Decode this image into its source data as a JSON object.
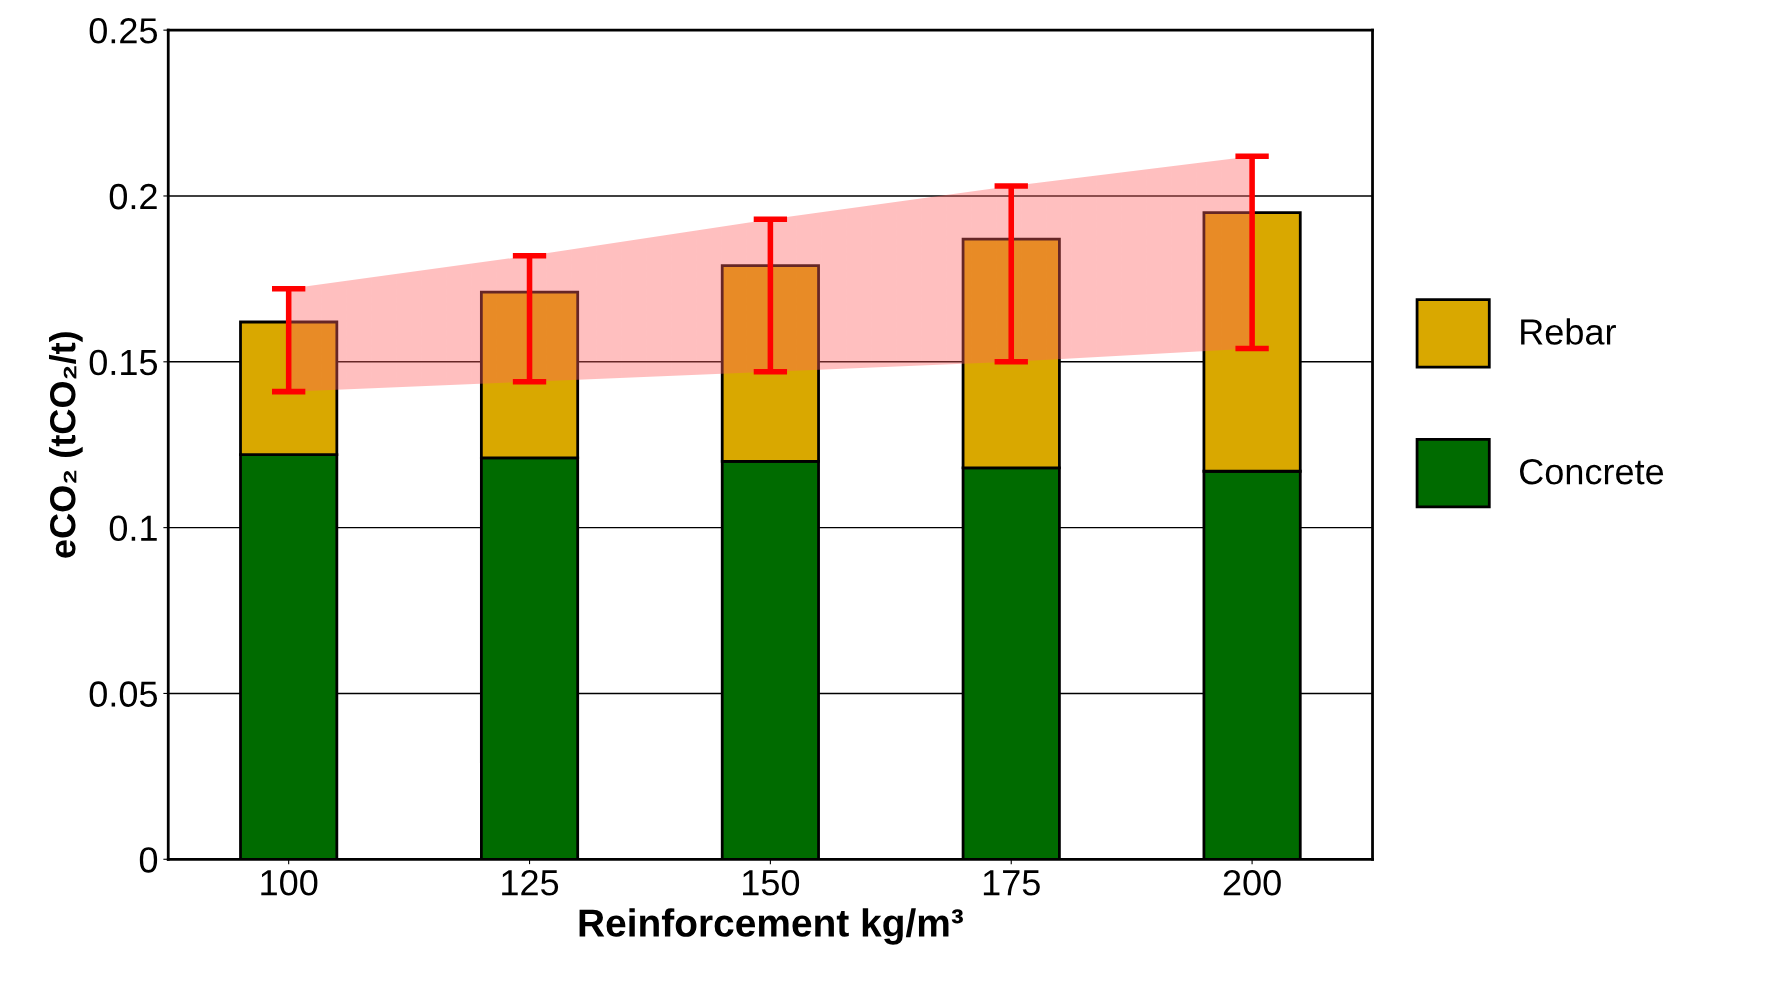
{
  "chart_data": {
    "type": "bar",
    "stacked": true,
    "xlabel": "Reinforcement kg/m³",
    "ylabel": "eCO₂ (tCO₂/t)",
    "categories": [
      "100",
      "125",
      "150",
      "175",
      "200"
    ],
    "series": [
      {
        "name": "Concrete",
        "color": "#006b00",
        "values": [
          0.122,
          0.121,
          0.12,
          0.118,
          0.117
        ]
      },
      {
        "name": "Rebar",
        "color": "#d9a800",
        "values": [
          0.04,
          0.05,
          0.059,
          0.069,
          0.078
        ],
        "errors": [
          [
            0.141,
            0.172
          ],
          [
            0.144,
            0.182
          ],
          [
            0.147,
            0.193
          ],
          [
            0.15,
            0.203
          ],
          [
            0.154,
            0.212
          ]
        ]
      },
      {
        "type": "area",
        "color": "#ff6060",
        "values": [
          null,
          null,
          null,
          null,
          null
        ],
        "lower": [
          0.141,
          0.144,
          0.147,
          0.15,
          0.154
        ],
        "upper": [
          0.172,
          0.182,
          0.193,
          0.203,
          0.212
        ]
      }
    ],
    "ylim": [
      0,
      0.25
    ],
    "yticks": [
      0,
      0.05,
      0.1,
      0.15,
      0.2,
      0.25
    ],
    "grid": "y",
    "legend": "right"
  }
}
